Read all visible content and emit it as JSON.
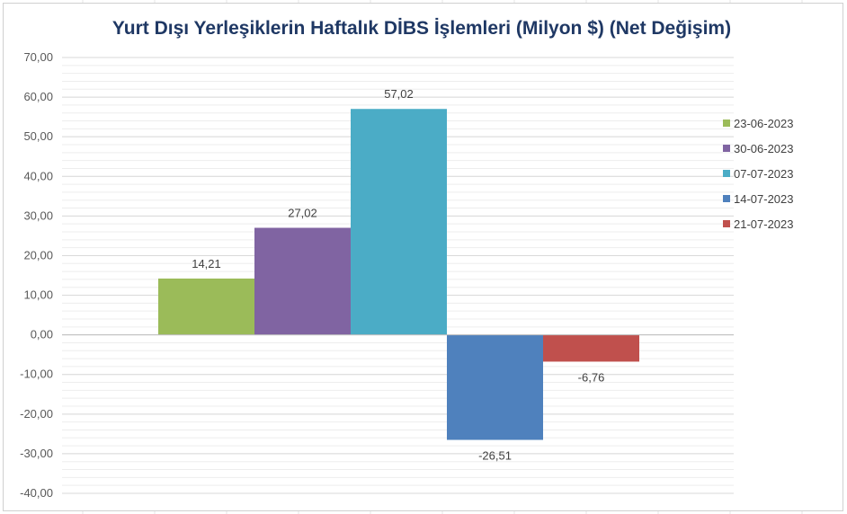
{
  "chart_data": {
    "type": "bar",
    "title": "Yurt Dışı Yerleşiklerin Haftalık DİBS İşlemleri (Milyon $) (Net Değişim)",
    "xlabel": "",
    "ylabel": "",
    "ylim": [
      -40,
      70
    ],
    "ytick_step": 10,
    "ytick_labels": [
      "70,00",
      "60,00",
      "50,00",
      "40,00",
      "30,00",
      "20,00",
      "10,00",
      "0,00",
      "-10,00",
      "-20,00",
      "-30,00",
      "-40,00"
    ],
    "grid": true,
    "legend_position": "right",
    "series": [
      {
        "name": "23-06-2023",
        "value": 14.21,
        "label": "14,21",
        "color": "#9bbb59"
      },
      {
        "name": "30-06-2023",
        "value": 27.02,
        "label": "27,02",
        "color": "#8064a2"
      },
      {
        "name": "07-07-2023",
        "value": 57.02,
        "label": "57,02",
        "color": "#4bacc6"
      },
      {
        "name": "14-07-2023",
        "value": -26.51,
        "label": "-26,51",
        "color": "#4f81bd"
      },
      {
        "name": "21-07-2023",
        "value": -6.76,
        "label": "-6,76",
        "color": "#c0504d"
      }
    ]
  }
}
